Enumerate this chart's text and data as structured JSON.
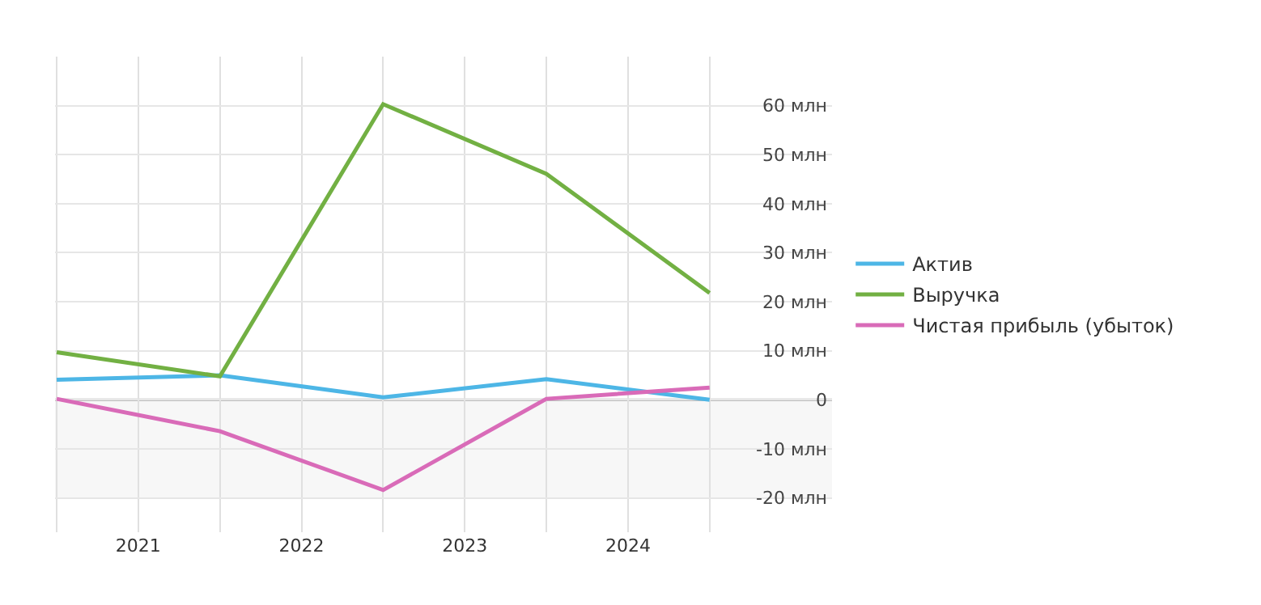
{
  "chart_data": {
    "type": "line",
    "x": [
      2021,
      2022,
      2023,
      2024,
      2025
    ],
    "xlim": [
      2020.99,
      2025.75
    ],
    "xticks": [
      {
        "value": 2021,
        "label": null
      },
      {
        "value": 2021.5,
        "label": "2021"
      },
      {
        "value": 2022,
        "label": null
      },
      {
        "value": 2022.5,
        "label": "2022"
      },
      {
        "value": 2023,
        "label": null
      },
      {
        "value": 2023.5,
        "label": "2023"
      },
      {
        "value": 2024,
        "label": null
      },
      {
        "value": 2024.5,
        "label": "2024"
      },
      {
        "value": 2025,
        "label": null
      }
    ],
    "ylim": [
      -27,
      70
    ],
    "yticks": [
      {
        "value": -20,
        "label": "-20 млн"
      },
      {
        "value": -10,
        "label": "-10 млн"
      },
      0,
      {
        "value": 10,
        "label": "10 млн"
      },
      {
        "value": 20,
        "label": "20 млн"
      },
      {
        "value": 30,
        "label": "30 млн"
      },
      {
        "value": 40,
        "label": "40 млн"
      },
      {
        "value": 50,
        "label": "50 млн"
      },
      {
        "value": 60,
        "label": "60 млн"
      }
    ],
    "series": [
      {
        "name": "Актив",
        "color": "#4db6e6",
        "values": [
          4.1,
          5.0,
          0.5,
          4.2,
          0
        ]
      },
      {
        "name": "Выручка",
        "color": "#72b043",
        "values": [
          9.7,
          4.8,
          60.3,
          46.1,
          21.8
        ]
      },
      {
        "name": "Чистая прибыль (убыток)",
        "color": "#d96bb8",
        "values": [
          0.2,
          -6.4,
          -18.4,
          0.2,
          2.5
        ]
      }
    ],
    "ref_lines": [
      {
        "axis": "y",
        "value": 0,
        "color": "#aaaaaa"
      }
    ],
    "bands": [
      {
        "axis": "y",
        "from": -20,
        "to": 0,
        "color": "#f7f7f7"
      }
    ],
    "grid": true,
    "legend": "right",
    "marker": "none",
    "line_style": "solid"
  }
}
